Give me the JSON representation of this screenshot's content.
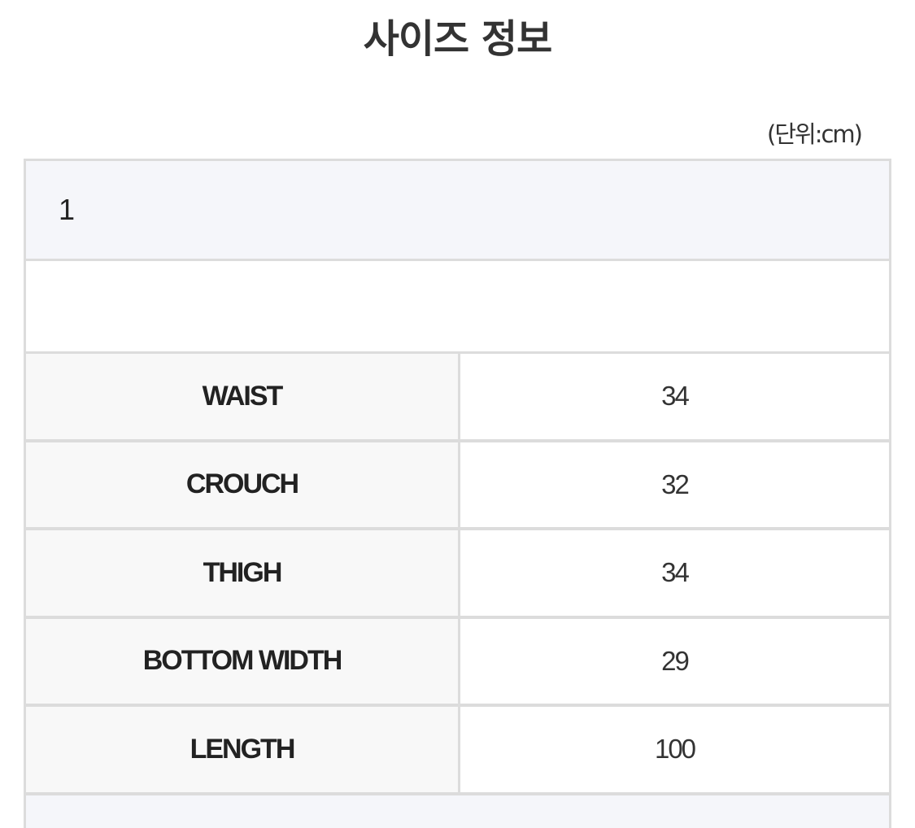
{
  "title": "사이즈 정보",
  "unit": "(단위:cm)",
  "size_header": "1",
  "rows": [
    {
      "label": "WAIST",
      "value": "34"
    },
    {
      "label": "CROUCH",
      "value": "32"
    },
    {
      "label": "THIGH",
      "value": "34"
    },
    {
      "label": "BOTTOM WIDTH",
      "value": "29"
    },
    {
      "label": "LENGTH",
      "value": "100"
    }
  ]
}
